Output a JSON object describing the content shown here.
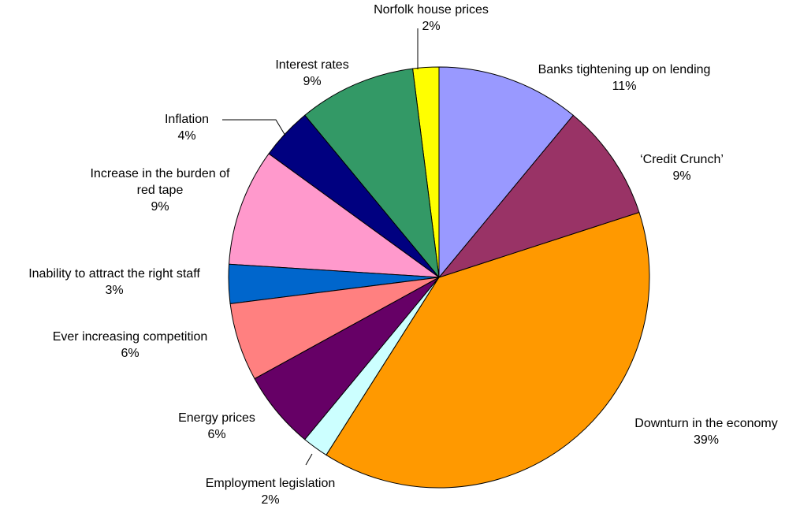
{
  "chart_data": {
    "type": "pie",
    "categories": [
      "Banks tightening up on lending",
      "‘Credit Crunch’",
      "Downturn in the economy",
      "Employment legislation",
      "Energy prices",
      "Ever increasing competition",
      "Inability to attract the right staff",
      "Increase in the burden of red tape",
      "Inflation",
      "Interest rates",
      "Norfolk house prices"
    ],
    "values": [
      11,
      9,
      39,
      2,
      6,
      6,
      3,
      9,
      4,
      9,
      2
    ],
    "value_labels": [
      "11%",
      "9%",
      "39%",
      "2%",
      "6%",
      "6%",
      "3%",
      "9%",
      "4%",
      "9%",
      "2%"
    ],
    "colors": [
      "#9999ff",
      "#993366",
      "#ff9900",
      "#ccffff",
      "#660066",
      "#ff8080",
      "#0066cc",
      "#ff99cc",
      "#000080",
      "#339966",
      "#ffff00"
    ]
  }
}
